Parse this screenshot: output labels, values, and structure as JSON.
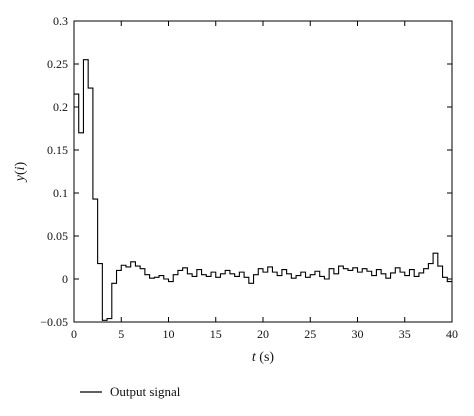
{
  "chart_data": {
    "type": "line",
    "title": "",
    "xlabel_var": "t",
    "xlabel_unit": " (s)",
    "ylabel_main": "y",
    "ylabel_open": "(",
    "ylabel_index": "i",
    "ylabel_close": ")",
    "xlim": [
      0,
      40
    ],
    "ylim": [
      -0.05,
      0.3
    ],
    "x_ticks": [
      "0",
      "5",
      "10",
      "15",
      "20",
      "25",
      "30",
      "35",
      "40"
    ],
    "y_ticks": [
      "−0.05",
      "0",
      "0.05",
      "0.1",
      "0.15",
      "0.2",
      "0.25",
      "0.3"
    ],
    "grid": false,
    "legend_position": "below-left",
    "step_width": 0.5,
    "series": [
      {
        "name": "Output signal",
        "color": "#000000",
        "x": [
          0,
          0.5,
          1,
          1.5,
          2,
          2.5,
          3,
          3.5,
          4,
          4.5,
          5,
          5.5,
          6,
          6.5,
          7,
          7.5,
          8,
          8.5,
          9,
          9.5,
          10,
          10.5,
          11,
          11.5,
          12,
          12.5,
          13,
          13.5,
          14,
          14.5,
          15,
          15.5,
          16,
          16.5,
          17,
          17.5,
          18,
          18.5,
          19,
          19.5,
          20,
          20.5,
          21,
          21.5,
          22,
          22.5,
          23,
          23.5,
          24,
          24.5,
          25,
          25.5,
          26,
          26.5,
          27,
          27.5,
          28,
          28.5,
          29,
          29.5,
          30,
          30.5,
          31,
          31.5,
          32,
          32.5,
          33,
          33.5,
          34,
          34.5,
          35,
          35.5,
          36,
          36.5,
          37,
          37.5,
          38,
          38.5,
          39,
          39.5
        ],
        "y": [
          0.215,
          0.17,
          0.255,
          0.222,
          0.093,
          0.018,
          -0.048,
          -0.046,
          -0.005,
          0.01,
          0.016,
          0.014,
          0.02,
          0.015,
          0.012,
          0.005,
          0.001,
          0.002,
          0.004,
          0.0,
          -0.003,
          0.005,
          0.01,
          0.013,
          0.006,
          0.003,
          0.011,
          0.005,
          0.003,
          0.008,
          0.002,
          0.006,
          0.01,
          0.006,
          0.003,
          0.008,
          0.002,
          -0.005,
          0.005,
          0.012,
          0.008,
          0.014,
          0.008,
          0.004,
          0.011,
          0.006,
          0.001,
          0.004,
          0.008,
          0.002,
          0.005,
          0.009,
          0.003,
          0.0,
          0.012,
          0.006,
          0.015,
          0.012,
          0.01,
          0.013,
          0.008,
          0.012,
          0.009,
          0.004,
          0.011,
          0.006,
          0.001,
          0.007,
          0.013,
          0.008,
          0.004,
          0.011,
          0.003,
          0.007,
          0.012,
          0.018,
          0.03,
          0.015,
          0.002,
          -0.003
        ]
      }
    ]
  }
}
